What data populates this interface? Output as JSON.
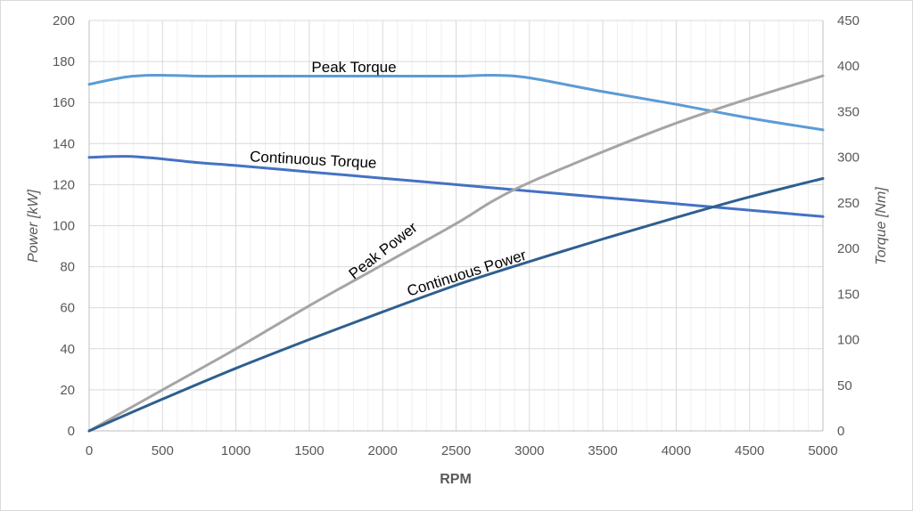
{
  "chart_data": {
    "type": "line",
    "xlabel": "RPM",
    "ylabel_left": "Power [kW]",
    "ylabel_right": "Torque [Nm]",
    "xlim": [
      0,
      5000
    ],
    "ylim_left": [
      0,
      200
    ],
    "ylim_right": [
      0,
      450
    ],
    "x_ticks": [
      "0",
      "500",
      "1000",
      "1500",
      "2000",
      "2500",
      "3000",
      "3500",
      "4000",
      "4500",
      "5000"
    ],
    "y_left_ticks": [
      "0",
      "20",
      "40",
      "60",
      "80",
      "100",
      "120",
      "140",
      "160",
      "180",
      "200"
    ],
    "y_right_ticks": [
      "0",
      "50",
      "100",
      "150",
      "200",
      "250",
      "300",
      "350",
      "400",
      "450"
    ],
    "grid": true,
    "legend": "none",
    "series": [
      {
        "name": "Peak Torque",
        "axis": "right",
        "color": "#5b9bd5",
        "x": [
          0,
          250,
          450,
          750,
          1000,
          1500,
          2000,
          2500,
          2750,
          3000,
          3500,
          4000,
          4500,
          5000
        ],
        "y": [
          380,
          388,
          390,
          389,
          389,
          389,
          389,
          389,
          390,
          387,
          372,
          358,
          343,
          330
        ]
      },
      {
        "name": "Continuous Torque",
        "axis": "right",
        "color": "#4472c4",
        "x": [
          0,
          250,
          450,
          750,
          1000,
          1500,
          2000,
          2500,
          3000,
          3500,
          4000,
          4500,
          5000
        ],
        "y": [
          300,
          301,
          299,
          294,
          291,
          284,
          277,
          270,
          263,
          256,
          249,
          242,
          235
        ]
      },
      {
        "name": "Peak Power",
        "axis": "left",
        "color": "#a5a5a5",
        "x": [
          0,
          500,
          1000,
          1500,
          2000,
          2500,
          2750,
          3000,
          3500,
          4000,
          4500,
          5000
        ],
        "y": [
          0,
          20,
          40,
          61,
          81,
          101,
          112,
          121,
          136,
          150,
          162,
          173
        ]
      },
      {
        "name": "Continuous Power",
        "axis": "left",
        "color": "#2e5f8f",
        "x": [
          0,
          500,
          1000,
          1500,
          2000,
          2500,
          3000,
          3500,
          4000,
          4500,
          5000
        ],
        "y": [
          0,
          15.5,
          30.5,
          44.5,
          58,
          71,
          82.5,
          93.5,
          104,
          114,
          123
        ]
      }
    ],
    "annotations": [
      {
        "text": "Peak Torque",
        "series": "Peak Torque"
      },
      {
        "text": "Continuous Torque",
        "series": "Continuous Torque"
      },
      {
        "text": "Peak Power",
        "series": "Peak Power"
      },
      {
        "text": "Continuous Power",
        "series": "Continuous Power"
      }
    ]
  }
}
